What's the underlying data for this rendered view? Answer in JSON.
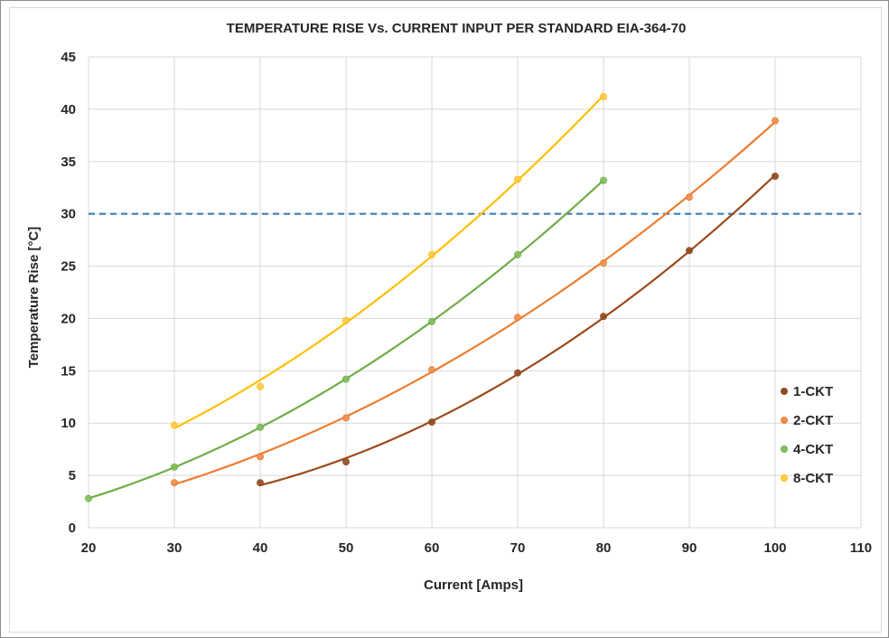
{
  "chart_data": {
    "type": "scatter",
    "title": "TEMPERATURE RISE Vs. CURRENT INPUT PER STANDARD EIA-364-70",
    "xlabel": "Current [Amps]",
    "ylabel": "Temperature Rise [°C]",
    "xlim": [
      20,
      110
    ],
    "ylim": [
      0,
      45
    ],
    "xticks": [
      20,
      30,
      40,
      50,
      60,
      70,
      80,
      90,
      100,
      110
    ],
    "yticks": [
      0,
      5,
      10,
      15,
      20,
      25,
      30,
      35,
      40,
      45
    ],
    "grid": true,
    "legend_position": "right",
    "reference_line": {
      "y": 30,
      "style": "dashed",
      "color": "#2e75b6"
    },
    "series": [
      {
        "name": "1-CKT",
        "color": "#8b4a26",
        "curve_color": "#9c4a1a",
        "x": [
          40,
          50,
          60,
          70,
          80,
          90,
          100
        ],
        "y": [
          4.3,
          6.3,
          10.1,
          14.8,
          20.2,
          26.5,
          33.6
        ]
      },
      {
        "name": "2-CKT",
        "color": "#f08c4e",
        "curve_color": "#ed7d31",
        "x": [
          30,
          40,
          50,
          60,
          70,
          80,
          90,
          100
        ],
        "y": [
          4.3,
          6.8,
          10.5,
          15.1,
          20.1,
          25.3,
          31.6,
          38.9
        ]
      },
      {
        "name": "4-CKT",
        "color": "#7fbf5b",
        "curve_color": "#70ad47",
        "x": [
          20,
          30,
          40,
          50,
          60,
          70,
          80
        ],
        "y": [
          2.8,
          5.8,
          9.6,
          14.2,
          19.7,
          26.1,
          33.2
        ]
      },
      {
        "name": "8-CKT",
        "color": "#ffc84a",
        "curve_color": "#ffc000",
        "x": [
          30,
          40,
          50,
          60,
          70,
          80
        ],
        "y": [
          9.8,
          13.5,
          19.8,
          26.1,
          33.3,
          41.2
        ]
      }
    ]
  }
}
